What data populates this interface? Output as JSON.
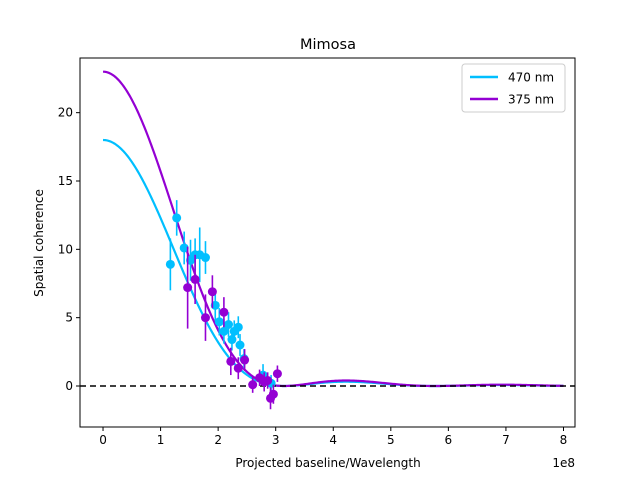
{
  "chart_data": {
    "type": "scatter",
    "title": "Mimosa",
    "xlabel": "Projected baseline/Wavelength",
    "ylabel": "Spatial coherence",
    "x_offset_label": "1e8",
    "xlim": [
      -0.4,
      8.2
    ],
    "ylim": [
      -3,
      24
    ],
    "x_ticks": [
      0,
      1,
      2,
      3,
      4,
      5,
      6,
      7,
      8
    ],
    "y_ticks": [
      0,
      5,
      10,
      15,
      20
    ],
    "x_tick_labels": [
      "0",
      "1",
      "2",
      "3",
      "4",
      "5",
      "6",
      "7",
      "8"
    ],
    "y_tick_labels": [
      "0",
      "5",
      "10",
      "15",
      "20"
    ],
    "grid": false,
    "legend_position": "top-right",
    "zero_line": {
      "y": 0,
      "style": "dashed",
      "color": "#000000"
    },
    "series": [
      {
        "name": "470 nm",
        "color": "#00bfff",
        "model_amplitude": 18.0,
        "points": [
          {
            "x": 1.17,
            "y": 8.9,
            "err": 1.9
          },
          {
            "x": 1.28,
            "y": 12.3,
            "err": 1.3
          },
          {
            "x": 1.41,
            "y": 10.1,
            "err": 1.2
          },
          {
            "x": 1.52,
            "y": 9.2,
            "err": 1.5
          },
          {
            "x": 1.6,
            "y": 9.6,
            "err": 1.2
          },
          {
            "x": 1.68,
            "y": 9.6,
            "err": 2.0
          },
          {
            "x": 1.78,
            "y": 9.4,
            "err": 1.2
          },
          {
            "x": 1.95,
            "y": 5.9,
            "err": 1.1
          },
          {
            "x": 2.02,
            "y": 4.7,
            "err": 1.0
          },
          {
            "x": 2.1,
            "y": 4.0,
            "err": 0.9
          },
          {
            "x": 2.18,
            "y": 4.5,
            "err": 0.9
          },
          {
            "x": 2.24,
            "y": 3.4,
            "err": 0.8
          },
          {
            "x": 2.28,
            "y": 4.0,
            "err": 0.8
          },
          {
            "x": 2.35,
            "y": 4.3,
            "err": 0.8
          },
          {
            "x": 2.38,
            "y": 3.0,
            "err": 0.8
          },
          {
            "x": 2.45,
            "y": 2.0,
            "err": 0.7
          },
          {
            "x": 2.78,
            "y": 0.8,
            "err": 0.8
          },
          {
            "x": 2.92,
            "y": 0.2,
            "err": 0.6
          }
        ]
      },
      {
        "name": "375 nm",
        "color": "#9400d3",
        "model_amplitude": 23.0,
        "points": [
          {
            "x": 1.47,
            "y": 7.2,
            "err": 3.0
          },
          {
            "x": 1.6,
            "y": 7.8,
            "err": 1.8
          },
          {
            "x": 1.78,
            "y": 5.0,
            "err": 1.7
          },
          {
            "x": 1.9,
            "y": 6.9,
            "err": 1.2
          },
          {
            "x": 2.1,
            "y": 5.4,
            "err": 1.1
          },
          {
            "x": 2.22,
            "y": 1.8,
            "err": 1.0
          },
          {
            "x": 2.35,
            "y": 1.3,
            "err": 0.8
          },
          {
            "x": 2.46,
            "y": 1.9,
            "err": 0.8
          },
          {
            "x": 2.6,
            "y": 0.1,
            "err": 0.6
          },
          {
            "x": 2.72,
            "y": 0.6,
            "err": 0.6
          },
          {
            "x": 2.8,
            "y": 0.3,
            "err": 0.7
          },
          {
            "x": 2.86,
            "y": 0.4,
            "err": 0.6
          },
          {
            "x": 2.91,
            "y": -0.9,
            "err": 0.8
          },
          {
            "x": 2.96,
            "y": -0.6,
            "err": 0.7
          },
          {
            "x": 3.03,
            "y": 0.9,
            "err": 0.6
          }
        ]
      }
    ]
  }
}
